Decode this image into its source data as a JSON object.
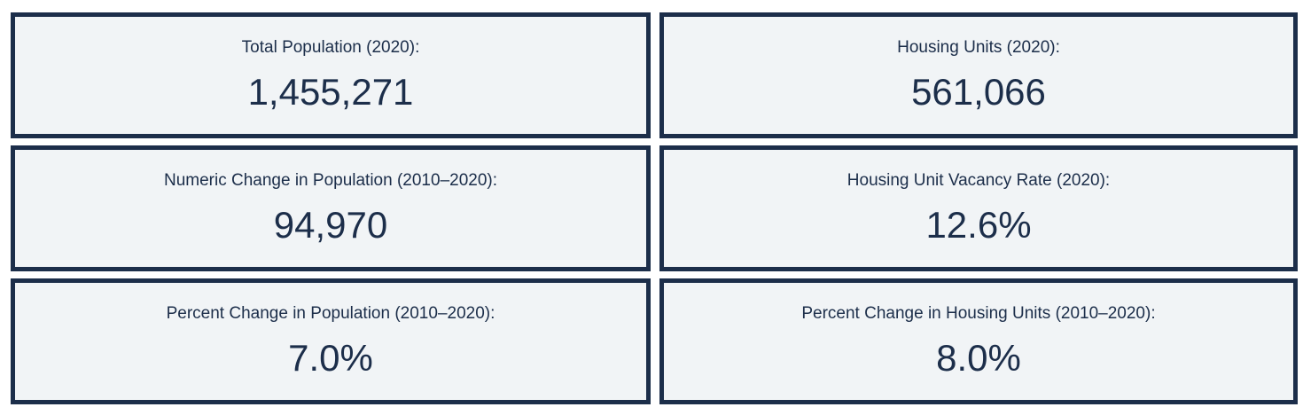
{
  "stats": [
    {
      "label": "Total Population (2020):",
      "value": "1,455,271"
    },
    {
      "label": "Housing Units (2020):",
      "value": "561,066"
    },
    {
      "label": "Numeric Change in Population (2010–2020):",
      "value": "94,970"
    },
    {
      "label": "Housing Unit Vacancy Rate (2020):",
      "value": "12.6%"
    },
    {
      "label": "Percent Change in Population (2010–2020):",
      "value": "7.0%"
    },
    {
      "label": "Percent Change in Housing Units (2010–2020):",
      "value": "8.0%"
    }
  ],
  "colors": {
    "border": "#1c2e4a",
    "card_background": "#f1f4f6",
    "text": "#1c2e4a"
  }
}
